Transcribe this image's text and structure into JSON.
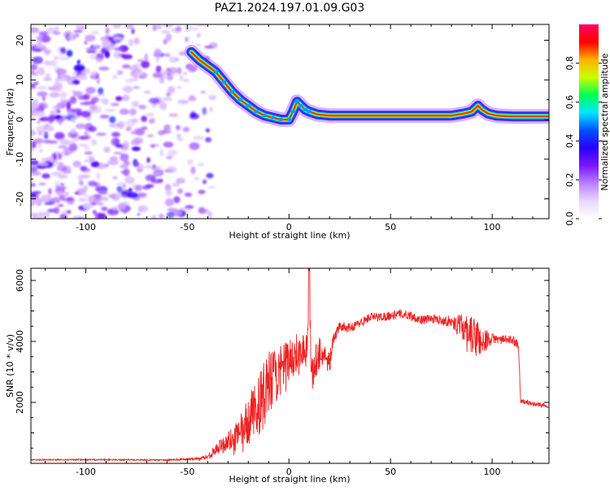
{
  "figure": {
    "title": "PAZ1.2024.197.01.09.G03"
  },
  "chart_data": [
    {
      "type": "heatmap",
      "xlabel": "Height of straight line (km)",
      "ylabel": "Frequency (Hz)",
      "xlim": [
        -127,
        128
      ],
      "ylim": [
        -25,
        24
      ],
      "xticks": [
        -100,
        -50,
        0,
        50,
        100
      ],
      "xtick_labels": [
        "-100",
        "-50",
        "0",
        "50",
        "100"
      ],
      "yticks": [
        -20,
        -10,
        0,
        10,
        20
      ],
      "ytick_labels": [
        "-20",
        "-10",
        "0",
        "10",
        "20"
      ],
      "colorbar": {
        "label": "Normalized spectral amplitude",
        "range": [
          0,
          1
        ],
        "ticks": [
          0.0,
          0.2,
          0.4,
          0.6,
          0.8
        ],
        "tick_labels": [
          "0.0",
          "0.2",
          "0.4",
          "0.6",
          "0.8"
        ],
        "colormap": [
          "#ffffff",
          "#e9d8ff",
          "#b980ff",
          "#7a16ff",
          "#2a00ff",
          "#0050ff",
          "#00e6ff",
          "#00ff50",
          "#c8ff00",
          "#ffb000",
          "#ff0000",
          "#ff0066"
        ]
      },
      "ridge": {
        "x": [
          -48,
          -44,
          -40,
          -36,
          -32,
          -28,
          -24,
          -20,
          -16,
          -12,
          -8,
          -4,
          0,
          2,
          4,
          6,
          8,
          10,
          14,
          20,
          30,
          40,
          50,
          60,
          70,
          80,
          86,
          90,
          93,
          95,
          98,
          102,
          110,
          120,
          128
        ],
        "y": [
          17,
          15,
          13.5,
          12,
          9.5,
          7,
          5,
          3.5,
          2,
          1,
          0.5,
          0,
          0,
          2,
          4.5,
          3.5,
          2.5,
          2,
          1.3,
          1,
          1,
          1,
          1,
          1,
          1,
          1,
          1.5,
          2,
          3.5,
          2.5,
          1.5,
          1,
          0.8,
          0.8,
          0.8
        ]
      },
      "noise_region_x": [
        -127,
        -42
      ]
    },
    {
      "type": "line",
      "xlabel": "Height of straight line (km)",
      "ylabel": "SNR (10 * v/v)",
      "xlim": [
        -127,
        128
      ],
      "ylim": [
        0,
        6400
      ],
      "xticks": [
        -100,
        -50,
        0,
        50,
        100
      ],
      "xtick_labels": [
        "-100",
        "-50",
        "0",
        "50",
        "100"
      ],
      "yticks": [
        2000,
        4000,
        6000
      ],
      "ytick_labels": [
        "2000",
        "4000",
        "6000"
      ],
      "series": [
        {
          "color": "#ee2222",
          "x": [
            -127,
            -90,
            -60,
            -45,
            -40,
            -35,
            -30,
            -25,
            -20,
            -15,
            -10,
            -5,
            0,
            5,
            9,
            10,
            11,
            15,
            20,
            22,
            25,
            30,
            35,
            40,
            45,
            50,
            55,
            60,
            65,
            70,
            75,
            80,
            85,
            90,
            93,
            95,
            100,
            105,
            110,
            113,
            114,
            120,
            128
          ],
          "y": [
            120,
            120,
            110,
            150,
            220,
            500,
            700,
            900,
            1400,
            1900,
            2500,
            3000,
            3400,
            3700,
            3800,
            6200,
            2800,
            3700,
            3300,
            4100,
            4500,
            4450,
            4600,
            4800,
            4800,
            4850,
            4900,
            4850,
            4700,
            4750,
            4700,
            4650,
            4500,
            4200,
            4100,
            4000,
            4100,
            4050,
            4050,
            3900,
            2050,
            1950,
            1900
          ],
          "noise_amplitude": [
            20,
            20,
            20,
            40,
            100,
            200,
            350,
            500,
            800,
            1000,
            1200,
            800,
            700,
            600,
            500,
            300,
            600,
            600,
            400,
            200,
            150,
            150,
            150,
            150,
            150,
            150,
            150,
            150,
            150,
            150,
            150,
            200,
            400,
            600,
            700,
            500,
            150,
            150,
            150,
            150,
            80,
            80,
            80
          ]
        }
      ]
    }
  ]
}
